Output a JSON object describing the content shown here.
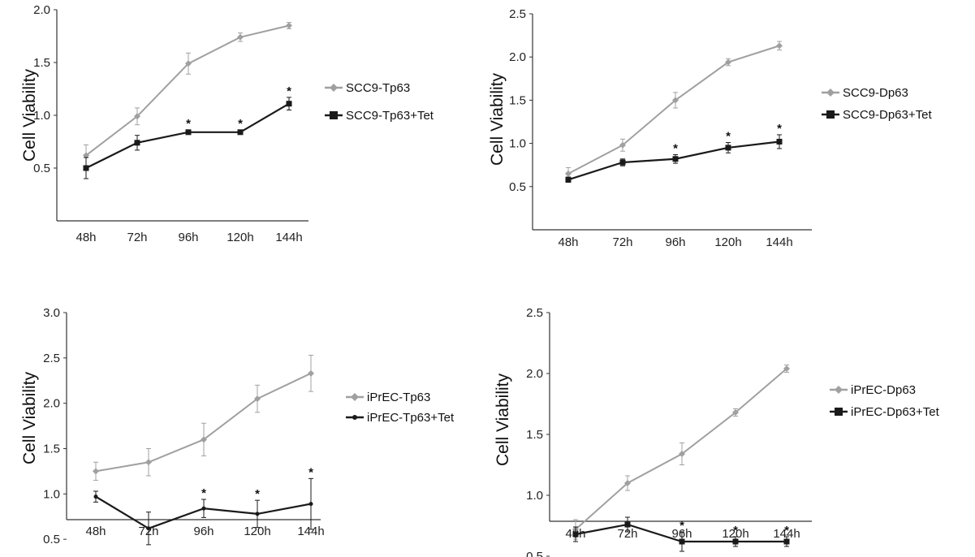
{
  "chart_data": [
    {
      "type": "line",
      "ylabel": "Cell Viability",
      "categories": [
        "48h",
        "72h",
        "96h",
        "120h",
        "144h"
      ],
      "ylim": [
        0,
        2.0
      ],
      "yticks": [
        "2.0",
        "1.5",
        "1.0",
        "0.5"
      ],
      "ytick_values": [
        2.0,
        1.5,
        1.0,
        0.5
      ],
      "series": [
        {
          "name": "SCC9-Tp63",
          "color": "#a0a0a0",
          "marker": "diamond",
          "values": [
            0.62,
            0.99,
            1.49,
            1.74,
            1.85
          ],
          "err": [
            0.1,
            0.08,
            0.1,
            0.04,
            0.03
          ]
        },
        {
          "name": "SCC9-Tp63+Tet",
          "color": "#1a1a1a",
          "marker": "square",
          "values": [
            0.5,
            0.74,
            0.84,
            0.84,
            1.11
          ],
          "err": [
            0.1,
            0.07,
            0.02,
            0.02,
            0.06
          ],
          "stars": [
            false,
            false,
            true,
            true,
            true
          ]
        }
      ]
    },
    {
      "type": "line",
      "ylabel": "Cell Viability",
      "categories": [
        "48h",
        "72h",
        "96h",
        "120h",
        "144h"
      ],
      "ylim": [
        0,
        2.5
      ],
      "yticks": [
        "2.5",
        "2.0",
        "1.5",
        "1.0",
        "0.5"
      ],
      "ytick_values": [
        2.5,
        2.0,
        1.5,
        1.0,
        0.5
      ],
      "series": [
        {
          "name": "SCC9-Dp63",
          "color": "#a0a0a0",
          "marker": "diamond",
          "values": [
            0.65,
            0.98,
            1.5,
            1.94,
            2.13
          ],
          "err": [
            0.07,
            0.07,
            0.09,
            0.04,
            0.05
          ]
        },
        {
          "name": "SCC9-Dp63+Tet",
          "color": "#1a1a1a",
          "marker": "square",
          "values": [
            0.58,
            0.78,
            0.82,
            0.95,
            1.02
          ],
          "err": [
            0.03,
            0.04,
            0.05,
            0.06,
            0.08
          ],
          "stars": [
            false,
            false,
            true,
            true,
            true
          ]
        }
      ]
    },
    {
      "type": "line",
      "ylabel": "Cell Viability",
      "categories": [
        "48h",
        "72h",
        "96h",
        "120h",
        "144h"
      ],
      "ylim": [
        0,
        3.0
      ],
      "yticks": [
        "3.0",
        "2.5",
        "2.0",
        "1.5",
        "1.0",
        "0.5"
      ],
      "ytick_values": [
        3.0,
        2.5,
        2.0,
        1.5,
        1.0,
        0.5
      ],
      "series": [
        {
          "name": "iPrEC-Tp63",
          "color": "#a0a0a0",
          "marker": "diamond",
          "values": [
            1.25,
            1.35,
            1.6,
            2.05,
            2.33
          ],
          "err": [
            0.1,
            0.15,
            0.18,
            0.15,
            0.2
          ]
        },
        {
          "name": "iPrEC-Tp63+Tet",
          "color": "#1a1a1a",
          "marker": "dot",
          "values": [
            0.97,
            0.62,
            0.84,
            0.78,
            0.89
          ],
          "err": [
            0.06,
            0.18,
            0.1,
            0.15,
            0.28
          ],
          "stars": [
            false,
            false,
            true,
            true,
            true
          ]
        }
      ]
    },
    {
      "type": "line",
      "ylabel": "Cell Viability",
      "categories": [
        "48h",
        "72h",
        "96h",
        "120h",
        "144h"
      ],
      "ylim": [
        0,
        2.5
      ],
      "yticks": [
        "2.5",
        "2.0",
        "1.5",
        "1.0",
        "0.5"
      ],
      "ytick_values": [
        2.5,
        2.0,
        1.5,
        1.0,
        0.5
      ],
      "series": [
        {
          "name": "iPrEC-Dp63",
          "color": "#a0a0a0",
          "marker": "diamond",
          "values": [
            0.72,
            1.1,
            1.34,
            1.68,
            2.04
          ],
          "err": [
            0.08,
            0.06,
            0.09,
            0.03,
            0.03
          ]
        },
        {
          "name": "iPrEC-Dp63+Tet",
          "color": "#1a1a1a",
          "marker": "square",
          "values": [
            0.68,
            0.76,
            0.62,
            0.62,
            0.62
          ],
          "err": [
            0.06,
            0.06,
            0.08,
            0.04,
            0.04
          ],
          "stars": [
            false,
            false,
            true,
            true,
            true
          ]
        }
      ]
    }
  ]
}
